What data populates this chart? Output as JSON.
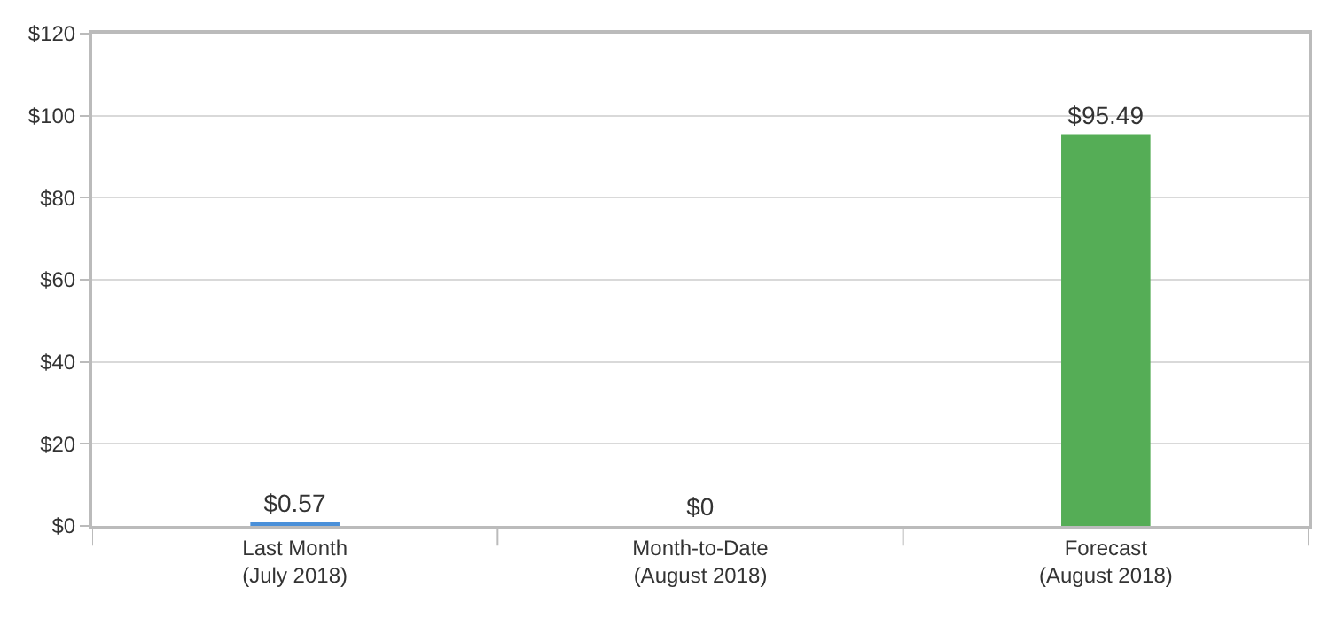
{
  "chart_data": {
    "type": "bar",
    "categories": [
      "Last Month\n(July 2018)",
      "Month-to-Date\n(August 2018)",
      "Forecast\n(August 2018)"
    ],
    "values": [
      0.57,
      0,
      95.49
    ],
    "colors": [
      "#4a90d9",
      "#4a90d9",
      "#55ad56"
    ],
    "value_labels": [
      "$0.57",
      "$0",
      "$95.49"
    ],
    "ylim": [
      0,
      120
    ],
    "yticks": [
      {
        "value": 0,
        "label": "$0"
      },
      {
        "value": 20,
        "label": "$20"
      },
      {
        "value": 40,
        "label": "$40"
      },
      {
        "value": 60,
        "label": "$60"
      },
      {
        "value": 80,
        "label": "$80"
      },
      {
        "value": 100,
        "label": "$100"
      },
      {
        "value": 120,
        "label": "$120"
      }
    ],
    "grid": "y"
  }
}
